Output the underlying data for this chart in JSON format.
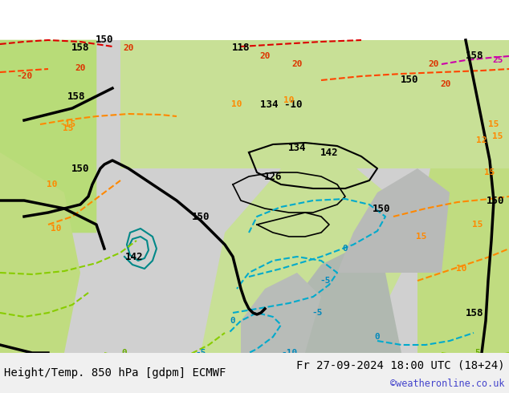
{
  "title_left": "Height/Temp. 850 hPa [gdpm] ECMWF",
  "title_right": "Fr 27-09-2024 18:00 UTC (18+24)",
  "copyright": "©weatheronline.co.uk",
  "bg_color": "#ffffff",
  "map_bg_colors": {
    "land_green": "#c8e6a0",
    "land_gray": "#c8c8c8",
    "sea_gray": "#d8d8d8",
    "sea_light": "#e8e8e8"
  },
  "figsize": [
    6.34,
    4.9
  ],
  "dpi": 100,
  "bottom_bar_color": "#f0f0f0",
  "title_fontsize": 10,
  "copyright_color": "#4444cc",
  "title_color": "#000000"
}
